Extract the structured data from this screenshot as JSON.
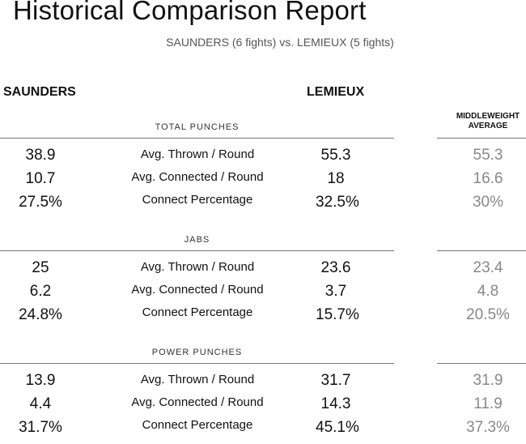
{
  "title": "Historical Comparison Report",
  "subtitle": "SAUNDERS (6 fights) vs. LEMIEUX (5 fights)",
  "fighters": {
    "left": "SAUNDERS",
    "right": "LEMIEUX"
  },
  "average_header": [
    "MIDDLEWEIGHT",
    "AVERAGE"
  ],
  "sections": [
    {
      "title": "TOTAL PUNCHES",
      "rows": [
        {
          "left": "38.9",
          "label": "Avg. Thrown / Round",
          "right": "55.3",
          "avg": "55.3"
        },
        {
          "left": "10.7",
          "label": "Avg. Connected / Round",
          "right": "18",
          "avg": "16.6"
        },
        {
          "left": "27.5%",
          "label": "Connect Percentage",
          "right": "32.5%",
          "avg": "30%"
        }
      ]
    },
    {
      "title": "JABS",
      "rows": [
        {
          "left": "25",
          "label": "Avg. Thrown / Round",
          "right": "23.6",
          "avg": "23.4"
        },
        {
          "left": "6.2",
          "label": "Avg. Connected / Round",
          "right": "3.7",
          "avg": "4.8"
        },
        {
          "left": "24.8%",
          "label": "Connect Percentage",
          "right": "15.7%",
          "avg": "20.5%"
        }
      ]
    },
    {
      "title": "POWER PUNCHES",
      "rows": [
        {
          "left": "13.9",
          "label": "Avg. Thrown / Round",
          "right": "31.7",
          "avg": "31.9"
        },
        {
          "left": "4.4",
          "label": "Avg. Connected / Round",
          "right": "14.3",
          "avg": "11.9"
        },
        {
          "left": "31.7%",
          "label": "Connect Percentage",
          "right": "45.1%",
          "avg": "37.3%"
        }
      ]
    }
  ]
}
